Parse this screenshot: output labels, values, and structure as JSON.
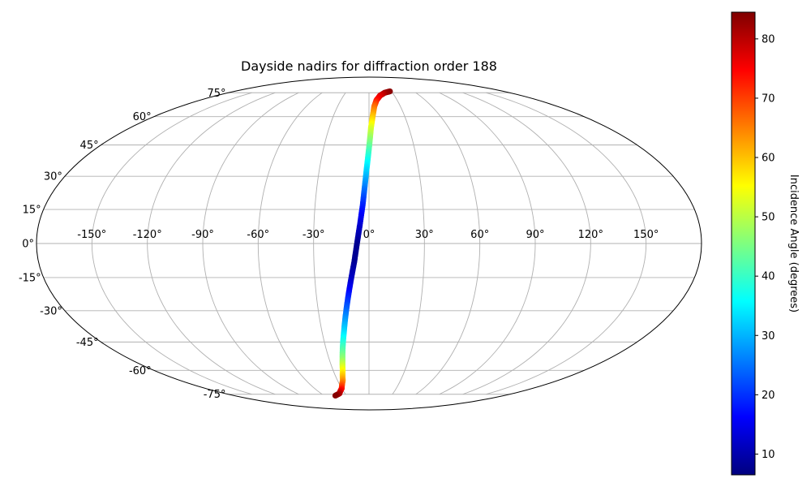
{
  "chart_data": {
    "type": "scatter",
    "projection": "mollweide",
    "title": "Dayside nadirs for diffraction order 188",
    "xlabel": "",
    "ylabel": "",
    "grid": true,
    "longitude_ticks": [
      -150,
      -120,
      -90,
      -60,
      -30,
      0,
      30,
      60,
      90,
      120,
      150
    ],
    "longitude_tick_labels": [
      "-150°",
      "-120°",
      "-90°",
      "-60°",
      "-30°",
      "0°",
      "30°",
      "60°",
      "90°",
      "120°",
      "150°"
    ],
    "latitude_ticks": [
      75,
      60,
      45,
      30,
      15,
      0,
      -15,
      -30,
      -45,
      -60,
      -75
    ],
    "latitude_tick_labels": [
      "75°",
      "60°",
      "45°",
      "30°",
      "15°",
      "0°",
      "-15°",
      "-30°",
      "-45°",
      "-60°",
      "-75°"
    ],
    "colorbar": {
      "label": "Incidence Angle (degrees)",
      "colormap": "jet",
      "range": [
        6.5,
        84.5
      ],
      "ticks": [
        10,
        20,
        30,
        40,
        50,
        60,
        70,
        80
      ],
      "tick_labels": [
        "10",
        "20",
        "30",
        "40",
        "50",
        "60",
        "70",
        "80"
      ]
    },
    "series": [
      {
        "points": [
          {
            "lon": 28,
            "lat": 76,
            "incidence": 84
          },
          {
            "lon": 20,
            "lat": 75,
            "incidence": 82
          },
          {
            "lon": 13,
            "lat": 73,
            "incidence": 78
          },
          {
            "lon": 8,
            "lat": 70,
            "incidence": 74
          },
          {
            "lon": 5,
            "lat": 66,
            "incidence": 67
          },
          {
            "lon": 3,
            "lat": 60,
            "incidence": 60
          },
          {
            "lon": 1.5,
            "lat": 54,
            "incidence": 53
          },
          {
            "lon": 0.5,
            "lat": 47,
            "incidence": 46
          },
          {
            "lon": -0.5,
            "lat": 40,
            "incidence": 39
          },
          {
            "lon": -1.5,
            "lat": 33,
            "incidence": 33
          },
          {
            "lon": -2.5,
            "lat": 25,
            "incidence": 26
          },
          {
            "lon": -3.5,
            "lat": 17,
            "incidence": 19
          },
          {
            "lon": -5,
            "lat": 8,
            "incidence": 13
          },
          {
            "lon": -6.5,
            "lat": 0,
            "incidence": 8
          },
          {
            "lon": -8,
            "lat": -8,
            "incidence": 8
          },
          {
            "lon": -10,
            "lat": -16,
            "incidence": 12
          },
          {
            "lon": -12,
            "lat": -24,
            "incidence": 19
          },
          {
            "lon": -14,
            "lat": -32,
            "incidence": 26
          },
          {
            "lon": -16,
            "lat": -40,
            "incidence": 33
          },
          {
            "lon": -18,
            "lat": -47,
            "incidence": 40
          },
          {
            "lon": -20,
            "lat": -54,
            "incidence": 47
          },
          {
            "lon": -22,
            "lat": -60,
            "incidence": 55
          },
          {
            "lon": -25,
            "lat": -66,
            "incidence": 63
          },
          {
            "lon": -30,
            "lat": -71,
            "incidence": 72
          },
          {
            "lon": -37,
            "lat": -74.5,
            "incidence": 80
          },
          {
            "lon": -45,
            "lat": -76,
            "incidence": 84
          }
        ]
      }
    ]
  }
}
